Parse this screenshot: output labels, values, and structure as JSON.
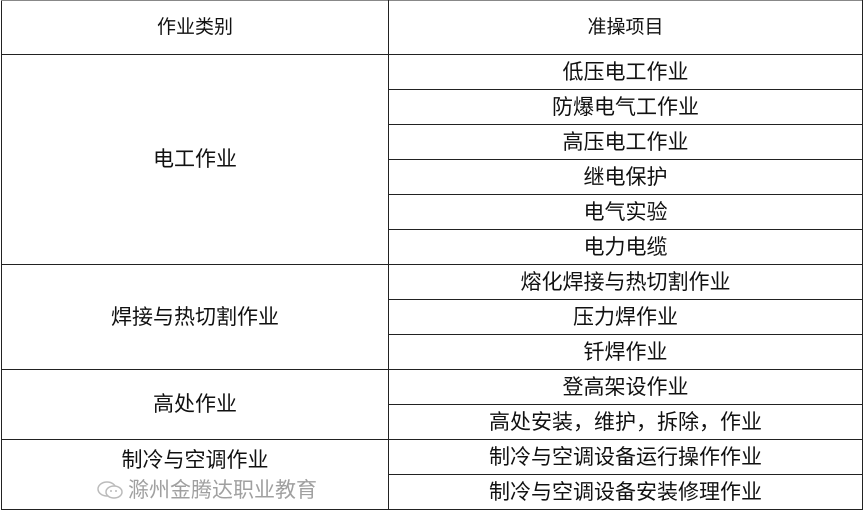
{
  "table": {
    "headers": [
      "作业类别",
      "准操项目"
    ],
    "groups": [
      {
        "category": "电工作业",
        "items": [
          "低压电工作业",
          "防爆电气工作业",
          "高压电工作业",
          "继电保护",
          "电气实验",
          "电力电缆"
        ]
      },
      {
        "category": "焊接与热切割作业",
        "items": [
          "熔化焊接与热切割作业",
          "压力焊作业",
          "钎焊作业"
        ]
      },
      {
        "category": "高处作业",
        "items": [
          "登高架设作业",
          "高处安装，维护，拆除，作业"
        ]
      },
      {
        "category": "制冷与空调作业",
        "items": [
          "制冷与空调设备运行操作作业",
          "制冷与空调设备安装修理作业"
        ]
      }
    ]
  },
  "watermark": {
    "icon": "wechat-icon",
    "text": "滁州金腾达职业教育"
  }
}
